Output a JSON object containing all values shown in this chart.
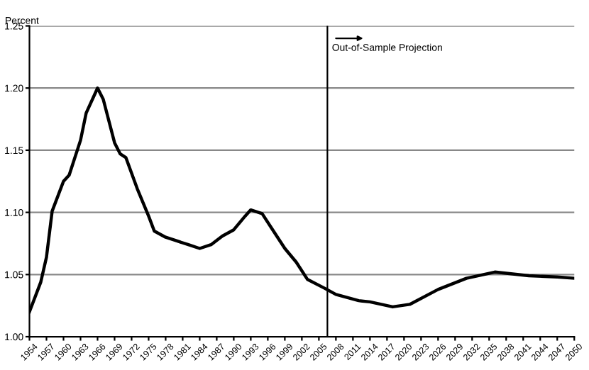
{
  "chart_data": {
    "type": "line",
    "ylabel": "Percent",
    "x": [
      1954,
      1956,
      1957,
      1958,
      1960,
      1961,
      1963,
      1964,
      1966,
      1967,
      1969,
      1970,
      1971,
      1973,
      1975,
      1976,
      1978,
      1980,
      1982,
      1984,
      1986,
      1988,
      1990,
      1992,
      1993,
      1995,
      1997,
      1999,
      2001,
      2003,
      2006,
      2008,
      2012,
      2014,
      2018,
      2021,
      2026,
      2031,
      2036,
      2042,
      2047,
      2050
    ],
    "series": [
      {
        "color": "#000000",
        "values": [
          1.02,
          1.044,
          1.064,
          1.101,
          1.125,
          1.13,
          1.158,
          1.18,
          1.2,
          1.191,
          1.156,
          1.147,
          1.144,
          1.119,
          1.097,
          1.085,
          1.08,
          1.077,
          1.074,
          1.071,
          1.074,
          1.081,
          1.086,
          1.097,
          1.102,
          1.099,
          1.085,
          1.071,
          1.06,
          1.046,
          1.039,
          1.034,
          1.029,
          1.028,
          1.024,
          1.026,
          1.038,
          1.047,
          1.052,
          1.049,
          1.048,
          1.047
        ]
      }
    ],
    "xlim": [
      1954,
      2050
    ],
    "xticks": [
      1954,
      1957,
      1960,
      1963,
      1966,
      1969,
      1972,
      1975,
      1978,
      1981,
      1984,
      1987,
      1990,
      1993,
      1996,
      1999,
      2002,
      2005,
      2008,
      2011,
      2014,
      2017,
      2020,
      2023,
      2026,
      2029,
      2032,
      2035,
      2038,
      2041,
      2044,
      2047,
      2050
    ],
    "ylim": [
      1.0,
      1.25
    ],
    "yticks": [
      {
        "value": 1.0,
        "label": "1.00"
      },
      {
        "value": 1.05,
        "label": "1.05"
      },
      {
        "value": 1.1,
        "label": "1.10"
      },
      {
        "value": 1.15,
        "label": "1.15"
      },
      {
        "value": 1.2,
        "label": "1.20"
      },
      {
        "value": 1.25,
        "label": "1.25"
      }
    ],
    "grid": "y",
    "ref_lines": [
      {
        "axis": "x",
        "value": 2006.5,
        "color": "#000000"
      }
    ],
    "annotations": [
      {
        "text": "Out-of-Sample Projection",
        "x": 2006.5,
        "y": 1.232
      }
    ]
  }
}
